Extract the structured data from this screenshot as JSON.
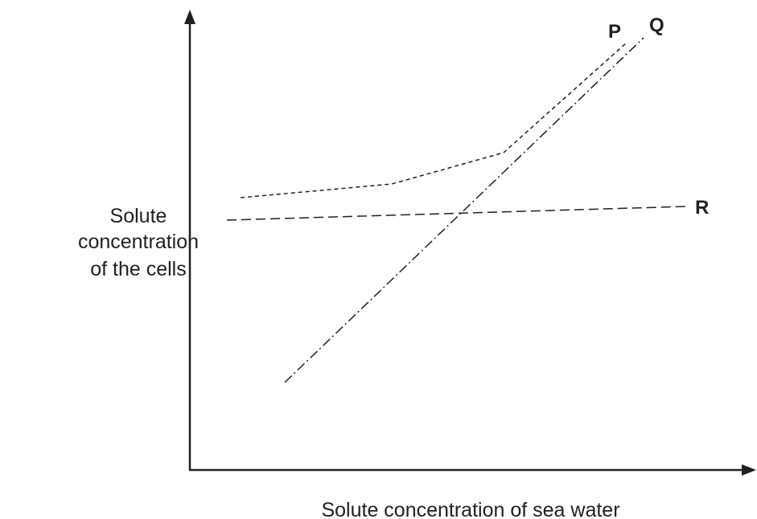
{
  "y_axis": {
    "label_lines": [
      "Solute",
      "concentration",
      "of the cells"
    ]
  },
  "x_axis": {
    "label": "Solute concentration of sea water"
  },
  "lines": [
    {
      "label": "P"
    },
    {
      "label": "Q"
    },
    {
      "label": "R"
    }
  ]
}
